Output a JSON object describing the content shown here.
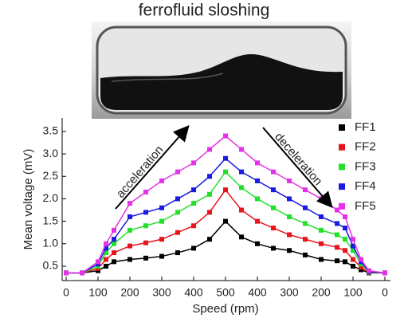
{
  "chart_data": {
    "type": "scatter",
    "title": "ferrofluid sloshing",
    "xlabel": "Speed (rpm)",
    "ylabel": "Mean voltage (mV)",
    "annotations": [
      "acceleration",
      "deceleration"
    ],
    "xlim": [
      -12.5,
      1017.5
    ],
    "ylim": [
      0.18,
      3.8
    ],
    "xticks": [
      0,
      100,
      200,
      300,
      400,
      500,
      {
        "value": 600,
        "label": "400"
      },
      {
        "value": 700,
        "label": "300"
      },
      {
        "value": 800,
        "label": "200"
      },
      {
        "value": 900,
        "label": "100"
      },
      {
        "value": 1000,
        "label": "0"
      }
    ],
    "yticks": [
      0.5,
      {
        "value": 1,
        "label": "1.0"
      },
      1.5,
      {
        "value": 2,
        "label": "2.0"
      },
      2.5,
      {
        "value": 3,
        "label": "3.0"
      },
      3.5
    ],
    "legend": "upper right",
    "x": [
      0,
      50,
      100,
      125,
      150,
      200,
      250,
      300,
      350,
      400,
      450,
      500,
      550,
      600,
      650,
      700,
      750,
      800,
      850,
      875,
      900,
      925,
      950,
      1000
    ],
    "series": [
      {
        "name": "FF1",
        "color": "#000000",
        "values": [
          0.35,
          0.35,
          0.4,
          0.5,
          0.6,
          0.65,
          0.68,
          0.72,
          0.8,
          0.9,
          1.1,
          1.5,
          1.15,
          1.0,
          0.9,
          0.85,
          0.75,
          0.65,
          0.62,
          0.6,
          0.5,
          0.42,
          0.35,
          0.35
        ]
      },
      {
        "name": "FF2",
        "color": "#e8141b",
        "values": [
          0.35,
          0.35,
          0.45,
          0.65,
          0.8,
          0.95,
          1.02,
          1.1,
          1.25,
          1.4,
          1.7,
          2.2,
          1.75,
          1.5,
          1.35,
          1.2,
          1.1,
          1.0,
          0.92,
          0.85,
          0.65,
          0.48,
          0.36,
          0.35
        ]
      },
      {
        "name": "FF3",
        "color": "#22e02a",
        "values": [
          0.35,
          0.35,
          0.5,
          0.8,
          1.0,
          1.3,
          1.4,
          1.5,
          1.7,
          1.9,
          2.1,
          2.6,
          2.25,
          2.0,
          1.8,
          1.6,
          1.45,
          1.3,
          1.2,
          1.1,
          0.85,
          0.55,
          0.37,
          0.35
        ]
      },
      {
        "name": "FF4",
        "color": "#1a1ae0",
        "values": [
          0.35,
          0.35,
          0.55,
          0.9,
          1.1,
          1.6,
          1.7,
          1.8,
          2.0,
          2.2,
          2.5,
          2.9,
          2.6,
          2.4,
          2.2,
          2.0,
          1.8,
          1.6,
          1.45,
          1.35,
          0.95,
          0.6,
          0.38,
          0.35
        ]
      },
      {
        "name": "FF5",
        "color": "#e632e6",
        "values": [
          0.35,
          0.35,
          0.6,
          1.0,
          1.3,
          1.9,
          2.15,
          2.4,
          2.6,
          2.8,
          3.1,
          3.4,
          3.1,
          2.8,
          2.6,
          2.4,
          2.2,
          2.0,
          1.75,
          1.6,
          1.1,
          0.65,
          0.4,
          0.35
        ]
      }
    ]
  }
}
